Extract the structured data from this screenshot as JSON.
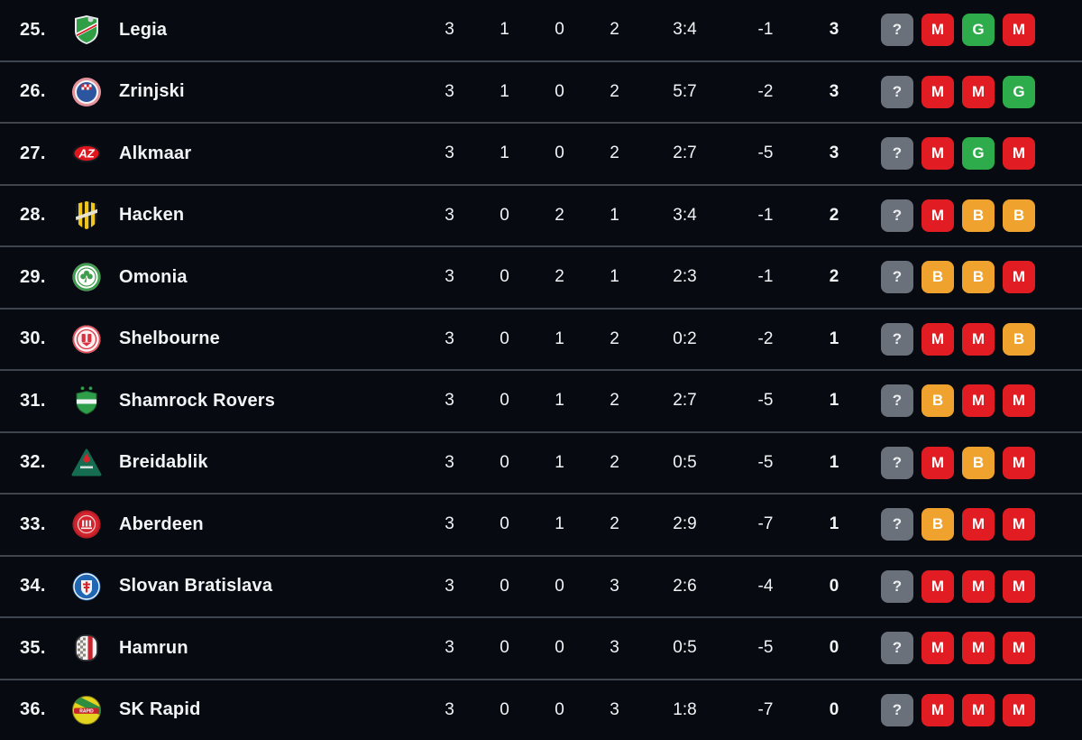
{
  "colors": {
    "background": "#070b11",
    "divider": "#3e454f",
    "text": "#f2f4f6",
    "badge_unknown": "#6b717b",
    "badge_win": "#2eab4b",
    "badge_draw": "#f0a22e",
    "badge_loss": "#e21c23"
  },
  "logo_text": {
    "alkmaar": "AZ",
    "skrapid": "RAPID"
  },
  "rows": [
    {
      "rank": "25.",
      "team": "Legia",
      "logo": "legia",
      "played": "3",
      "wins": "1",
      "draws": "0",
      "losses": "2",
      "goals": "3:4",
      "diff": "-1",
      "points": "3",
      "form": [
        {
          "label": "?",
          "result": "unknown"
        },
        {
          "label": "M",
          "result": "loss"
        },
        {
          "label": "G",
          "result": "win"
        },
        {
          "label": "M",
          "result": "loss"
        }
      ]
    },
    {
      "rank": "26.",
      "team": "Zrinjski",
      "logo": "zrinjski",
      "played": "3",
      "wins": "1",
      "draws": "0",
      "losses": "2",
      "goals": "5:7",
      "diff": "-2",
      "points": "3",
      "form": [
        {
          "label": "?",
          "result": "unknown"
        },
        {
          "label": "M",
          "result": "loss"
        },
        {
          "label": "M",
          "result": "loss"
        },
        {
          "label": "G",
          "result": "win"
        }
      ]
    },
    {
      "rank": "27.",
      "team": "Alkmaar",
      "logo": "alkmaar",
      "played": "3",
      "wins": "1",
      "draws": "0",
      "losses": "2",
      "goals": "2:7",
      "diff": "-5",
      "points": "3",
      "form": [
        {
          "label": "?",
          "result": "unknown"
        },
        {
          "label": "M",
          "result": "loss"
        },
        {
          "label": "G",
          "result": "win"
        },
        {
          "label": "M",
          "result": "loss"
        }
      ]
    },
    {
      "rank": "28.",
      "team": "Hacken",
      "logo": "hacken",
      "played": "3",
      "wins": "0",
      "draws": "2",
      "losses": "1",
      "goals": "3:4",
      "diff": "-1",
      "points": "2",
      "form": [
        {
          "label": "?",
          "result": "unknown"
        },
        {
          "label": "M",
          "result": "loss"
        },
        {
          "label": "B",
          "result": "draw"
        },
        {
          "label": "B",
          "result": "draw"
        }
      ]
    },
    {
      "rank": "29.",
      "team": "Omonia",
      "logo": "omonia",
      "played": "3",
      "wins": "0",
      "draws": "2",
      "losses": "1",
      "goals": "2:3",
      "diff": "-1",
      "points": "2",
      "form": [
        {
          "label": "?",
          "result": "unknown"
        },
        {
          "label": "B",
          "result": "draw"
        },
        {
          "label": "B",
          "result": "draw"
        },
        {
          "label": "M",
          "result": "loss"
        }
      ]
    },
    {
      "rank": "30.",
      "team": "Shelbourne",
      "logo": "shelbourne",
      "played": "3",
      "wins": "0",
      "draws": "1",
      "losses": "2",
      "goals": "0:2",
      "diff": "-2",
      "points": "1",
      "form": [
        {
          "label": "?",
          "result": "unknown"
        },
        {
          "label": "M",
          "result": "loss"
        },
        {
          "label": "M",
          "result": "loss"
        },
        {
          "label": "B",
          "result": "draw"
        }
      ]
    },
    {
      "rank": "31.",
      "team": "Shamrock Rovers",
      "logo": "shamrock",
      "played": "3",
      "wins": "0",
      "draws": "1",
      "losses": "2",
      "goals": "2:7",
      "diff": "-5",
      "points": "1",
      "form": [
        {
          "label": "?",
          "result": "unknown"
        },
        {
          "label": "B",
          "result": "draw"
        },
        {
          "label": "M",
          "result": "loss"
        },
        {
          "label": "M",
          "result": "loss"
        }
      ]
    },
    {
      "rank": "32.",
      "team": "Breidablik",
      "logo": "breidablik",
      "played": "3",
      "wins": "0",
      "draws": "1",
      "losses": "2",
      "goals": "0:5",
      "diff": "-5",
      "points": "1",
      "form": [
        {
          "label": "?",
          "result": "unknown"
        },
        {
          "label": "M",
          "result": "loss"
        },
        {
          "label": "B",
          "result": "draw"
        },
        {
          "label": "M",
          "result": "loss"
        }
      ]
    },
    {
      "rank": "33.",
      "team": "Aberdeen",
      "logo": "aberdeen",
      "played": "3",
      "wins": "0",
      "draws": "1",
      "losses": "2",
      "goals": "2:9",
      "diff": "-7",
      "points": "1",
      "form": [
        {
          "label": "?",
          "result": "unknown"
        },
        {
          "label": "B",
          "result": "draw"
        },
        {
          "label": "M",
          "result": "loss"
        },
        {
          "label": "M",
          "result": "loss"
        }
      ]
    },
    {
      "rank": "34.",
      "team": "Slovan Bratislava",
      "logo": "slovan",
      "played": "3",
      "wins": "0",
      "draws": "0",
      "losses": "3",
      "goals": "2:6",
      "diff": "-4",
      "points": "0",
      "form": [
        {
          "label": "?",
          "result": "unknown"
        },
        {
          "label": "M",
          "result": "loss"
        },
        {
          "label": "M",
          "result": "loss"
        },
        {
          "label": "M",
          "result": "loss"
        }
      ]
    },
    {
      "rank": "35.",
      "team": "Hamrun",
      "logo": "hamrun",
      "played": "3",
      "wins": "0",
      "draws": "0",
      "losses": "3",
      "goals": "0:5",
      "diff": "-5",
      "points": "0",
      "form": [
        {
          "label": "?",
          "result": "unknown"
        },
        {
          "label": "M",
          "result": "loss"
        },
        {
          "label": "M",
          "result": "loss"
        },
        {
          "label": "M",
          "result": "loss"
        }
      ]
    },
    {
      "rank": "36.",
      "team": "SK Rapid",
      "logo": "skrapid",
      "played": "3",
      "wins": "0",
      "draws": "0",
      "losses": "3",
      "goals": "1:8",
      "diff": "-7",
      "points": "0",
      "form": [
        {
          "label": "?",
          "result": "unknown"
        },
        {
          "label": "M",
          "result": "loss"
        },
        {
          "label": "M",
          "result": "loss"
        },
        {
          "label": "M",
          "result": "loss"
        }
      ]
    }
  ]
}
